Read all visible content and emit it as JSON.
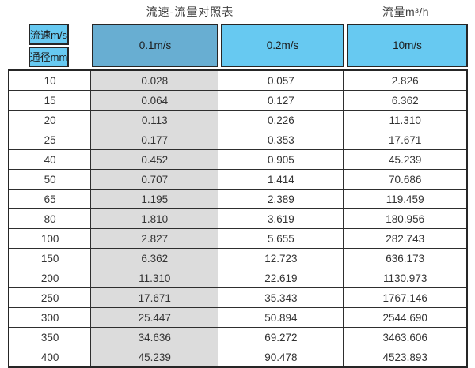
{
  "page": {
    "title_left": "流速-流量对照表",
    "title_right": "流量m³/h"
  },
  "table": {
    "corner": {
      "top": "流速m/s",
      "bottom": "通径mm"
    },
    "columns": [
      "0.1m/s",
      "0.2m/s",
      "10m/s"
    ],
    "rows": [
      [
        "10",
        "0.028",
        "0.057",
        "2.826"
      ],
      [
        "15",
        "0.064",
        "0.127",
        "6.362"
      ],
      [
        "20",
        "0.113",
        "0.226",
        "11.310"
      ],
      [
        "25",
        "0.177",
        "0.353",
        "17.671"
      ],
      [
        "40",
        "0.452",
        "0.905",
        "45.239"
      ],
      [
        "50",
        "0.707",
        "1.414",
        "70.686"
      ],
      [
        "65",
        "1.195",
        "2.389",
        "119.459"
      ],
      [
        "80",
        "1.810",
        "3.619",
        "180.956"
      ],
      [
        "100",
        "2.827",
        "5.655",
        "282.743"
      ],
      [
        "150",
        "6.362",
        "12.723",
        "636.173"
      ],
      [
        "200",
        "11.310",
        "22.619",
        "1130.973"
      ],
      [
        "250",
        "17.671",
        "35.343",
        "1767.146"
      ],
      [
        "300",
        "25.447",
        "50.894",
        "2544.690"
      ],
      [
        "350",
        "34.636",
        "69.272",
        "3463.606"
      ],
      [
        "400",
        "45.239",
        "90.478",
        "4523.893"
      ]
    ],
    "colors": {
      "header_light_blue": "#67c9f1",
      "header_dark_blue": "#68aed2",
      "highlight_gray": "#dcdcdc",
      "border": "#262626"
    }
  },
  "chart_data": {
    "type": "table",
    "title": "流速-流量对照表",
    "unit_label": "流量m³/h",
    "row_header": "通径mm",
    "col_header": "流速m/s",
    "columns": [
      "0.1m/s",
      "0.2m/s",
      "10m/s"
    ],
    "diameters_mm": [
      10,
      15,
      20,
      25,
      40,
      50,
      65,
      80,
      100,
      150,
      200,
      250,
      300,
      350,
      400
    ],
    "series": [
      {
        "name": "0.1m/s",
        "values": [
          0.028,
          0.064,
          0.113,
          0.177,
          0.452,
          0.707,
          1.195,
          1.81,
          2.827,
          6.362,
          11.31,
          17.671,
          25.447,
          34.636,
          45.239
        ]
      },
      {
        "name": "0.2m/s",
        "values": [
          0.057,
          0.127,
          0.226,
          0.353,
          0.905,
          1.414,
          2.389,
          3.619,
          5.655,
          12.723,
          22.619,
          35.343,
          50.894,
          69.272,
          90.478
        ]
      },
      {
        "name": "10m/s",
        "values": [
          2.826,
          6.362,
          11.31,
          17.671,
          45.239,
          70.686,
          119.459,
          180.956,
          282.743,
          636.173,
          1130.973,
          1767.146,
          2544.69,
          3463.606,
          4523.893
        ]
      }
    ],
    "layout_hints": {
      "highlighted_column": "0.1m/s",
      "grid": true
    }
  }
}
